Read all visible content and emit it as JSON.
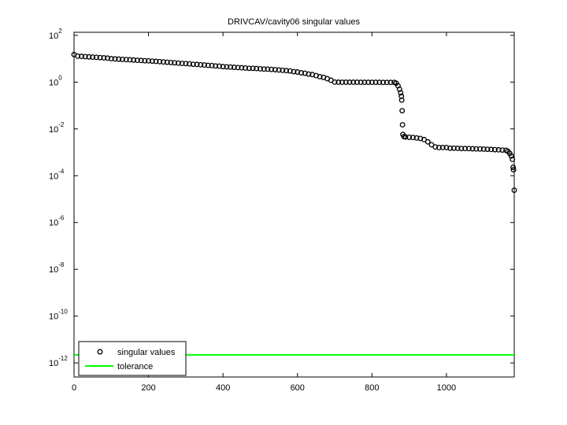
{
  "chart_data": {
    "type": "scatter",
    "title": "DRIVCAV/cavity06 singular values",
    "yscale": "log",
    "grid": false,
    "legend": "lower left",
    "xlim": [
      0,
      1182
    ],
    "ylim": [
      2.5e-13,
      135
    ],
    "xticks": [
      0,
      200,
      400,
      600,
      800,
      1000
    ],
    "yticks": [
      {
        "value": 100,
        "label": "10^2"
      },
      {
        "value": 1,
        "label": "10^0"
      },
      {
        "value": 0.01,
        "label": "10^-2"
      },
      {
        "value": 0.0001,
        "label": "10^-4"
      },
      {
        "value": 1e-06,
        "label": "10^-6"
      },
      {
        "value": 1e-08,
        "label": "10^-8"
      },
      {
        "value": 1e-10,
        "label": "10^-10"
      },
      {
        "value": 1e-12,
        "label": "10^-12"
      }
    ],
    "series": [
      {
        "name": "singular values",
        "color": "#000000",
        "marker": "o",
        "x": [
          0,
          10,
          20,
          30,
          40,
          50,
          60,
          70,
          80,
          90,
          100,
          110,
          120,
          130,
          140,
          150,
          160,
          170,
          180,
          190,
          200,
          210,
          220,
          230,
          240,
          250,
          260,
          270,
          280,
          290,
          300,
          310,
          320,
          330,
          340,
          350,
          360,
          370,
          380,
          390,
          400,
          410,
          420,
          430,
          440,
          450,
          460,
          470,
          480,
          490,
          500,
          510,
          520,
          530,
          540,
          550,
          560,
          570,
          580,
          590,
          600,
          610,
          620,
          630,
          640,
          650,
          660,
          670,
          680,
          690,
          700,
          710,
          720,
          730,
          740,
          750,
          760,
          770,
          780,
          790,
          800,
          810,
          820,
          830,
          840,
          850,
          860,
          865,
          870,
          874,
          877,
          879,
          880,
          881,
          882,
          883,
          886,
          890,
          900,
          910,
          920,
          930,
          940,
          950,
          960,
          970,
          980,
          990,
          1000,
          1010,
          1020,
          1030,
          1040,
          1050,
          1060,
          1070,
          1080,
          1090,
          1100,
          1110,
          1120,
          1130,
          1140,
          1150,
          1160,
          1165,
          1170,
          1174,
          1177,
          1179,
          1180,
          1182
        ],
        "values": [
          15,
          12.9,
          12.6,
          12.3,
          12.0,
          11.7,
          11.5,
          11.2,
          10.9,
          10.6,
          10.0,
          9.8,
          9.6,
          9.4,
          9.2,
          9.0,
          8.8,
          8.6,
          8.4,
          8.2,
          8.1,
          7.9,
          7.7,
          7.5,
          7.3,
          7.1,
          6.9,
          6.7,
          6.5,
          6.3,
          6.2,
          6.0,
          5.8,
          5.7,
          5.5,
          5.4,
          5.2,
          5.1,
          4.9,
          4.8,
          4.6,
          4.5,
          4.4,
          4.3,
          4.2,
          4.1,
          4.0,
          3.9,
          3.9,
          3.8,
          3.7,
          3.6,
          3.6,
          3.5,
          3.4,
          3.3,
          3.2,
          3.1,
          3.0,
          2.8,
          2.7,
          2.5,
          2.4,
          2.2,
          2.1,
          1.9,
          1.7,
          1.6,
          1.4,
          1.2,
          1.0,
          0.99,
          0.99,
          0.99,
          0.99,
          0.99,
          0.99,
          0.98,
          0.98,
          0.98,
          0.98,
          0.98,
          0.98,
          0.97,
          0.97,
          0.97,
          0.97,
          0.9,
          0.7,
          0.5,
          0.35,
          0.25,
          0.17,
          0.06,
          0.015,
          0.0058,
          0.0047,
          0.0045,
          0.0044,
          0.0043,
          0.0041,
          0.0039,
          0.0035,
          0.0028,
          0.0021,
          0.0017,
          0.0016,
          0.0016,
          0.0016,
          0.0015,
          0.0015,
          0.00148,
          0.00146,
          0.00145,
          0.00144,
          0.00142,
          0.0014,
          0.00139,
          0.00137,
          0.00135,
          0.00133,
          0.0013,
          0.00128,
          0.00125,
          0.00122,
          0.0011,
          0.0009,
          0.0007,
          0.0005,
          0.00023,
          0.00018,
          2.4e-05
        ]
      },
      {
        "name": "tolerance",
        "color": "#00ff00",
        "type": "line",
        "x": [
          0,
          1182
        ],
        "values": [
          2.2e-12,
          2.2e-12
        ]
      }
    ]
  }
}
